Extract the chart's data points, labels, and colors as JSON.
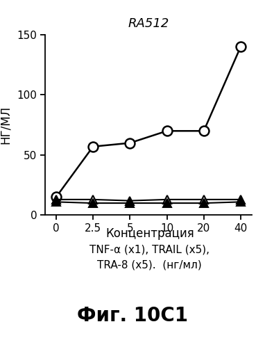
{
  "title": "RA512",
  "xlabel": "Концентрация",
  "xlabel2": "TNF-α (x1), TRAIL (x5),",
  "xlabel3": "TRA-8 (x5).  (нг/мл)",
  "ylabel": "НГ/МЛ",
  "caption": "Фиг. 10C1",
  "x_positions": [
    0,
    1,
    2,
    3,
    4,
    5
  ],
  "x_labels": [
    "0",
    "2.5",
    "5",
    "10",
    "20",
    "40"
  ],
  "y_circle": [
    15,
    57,
    60,
    70,
    70,
    140
  ],
  "y_triangle_open": [
    13,
    13,
    12,
    13,
    13,
    13
  ],
  "y_triangle_filled": [
    11,
    10,
    10,
    10,
    10,
    11
  ],
  "ylim": [
    0,
    150
  ],
  "yticks": [
    0,
    50,
    100,
    150
  ],
  "line_color": "#000000",
  "bg_color": "#ffffff"
}
